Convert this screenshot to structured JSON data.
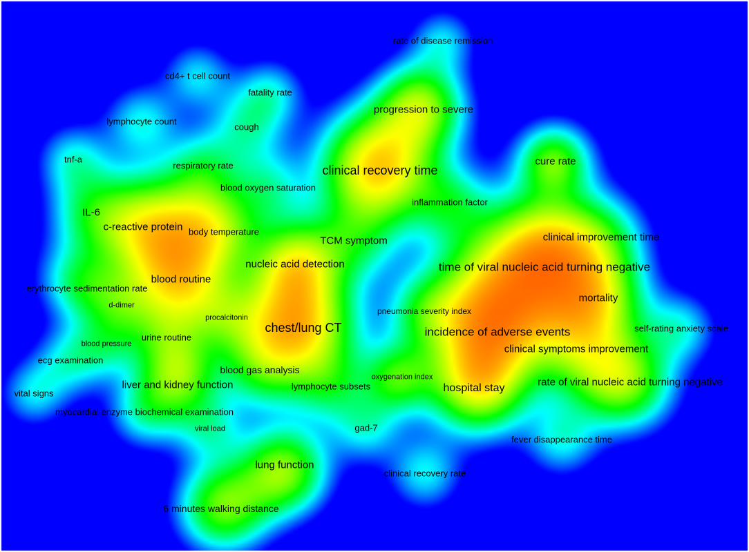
{
  "map": {
    "title": "",
    "colors": {
      "background": "#0000ff",
      "low": "#00ffff",
      "mid": "#00ff00",
      "high": "#ffff00",
      "peak": "#ff0000"
    }
  },
  "terms": [
    {
      "key": "rate-of-disease-remission",
      "label": "rate of disease remission",
      "density": 0.15
    },
    {
      "key": "cd4-t-cell-count",
      "label": "cd4+ t cell count",
      "density": 0.2
    },
    {
      "key": "fatality-rate",
      "label": "fatality rate",
      "density": 0.2
    },
    {
      "key": "progression-to-severe",
      "label": "progression to severe",
      "density": 0.6
    },
    {
      "key": "lymphocyte-count",
      "label": "lymphocyte count",
      "density": 0.3
    },
    {
      "key": "cough",
      "label": "cough",
      "density": 0.35
    },
    {
      "key": "tnf-a",
      "label": "tnf-a",
      "density": 0.25
    },
    {
      "key": "respiratory-rate",
      "label": "respiratory rate",
      "density": 0.3
    },
    {
      "key": "clinical-recovery-time",
      "label": "clinical recovery time",
      "density": 0.95
    },
    {
      "key": "cure-rate",
      "label": "cure rate",
      "density": 0.5
    },
    {
      "key": "blood-oxygen-saturation",
      "label": "blood oxygen saturation",
      "density": 0.35
    },
    {
      "key": "inflammation-factor",
      "label": "inflammation factor",
      "density": 0.3
    },
    {
      "key": "il-6",
      "label": "IL-6",
      "density": 0.5
    },
    {
      "key": "c-reactive-protein",
      "label": "c-reactive protein",
      "density": 0.65
    },
    {
      "key": "body-temperature",
      "label": "body temperature",
      "density": 0.5
    },
    {
      "key": "clinical-improvement-time",
      "label": "clinical improvement time",
      "density": 0.6
    },
    {
      "key": "tcm-symptom",
      "label": "TCM symptom",
      "density": 0.55
    },
    {
      "key": "nucleic-acid-detection",
      "label": "nucleic acid detection",
      "density": 0.6
    },
    {
      "key": "time-of-viral-nucleic-acid-turning-negative",
      "label": "time of viral nucleic acid turning negative",
      "density": 1.0
    },
    {
      "key": "blood-routine",
      "label": "blood routine",
      "density": 0.7
    },
    {
      "key": "erythrocyte-sedimentation-rate",
      "label": "erythrocyte sedimentation rate",
      "density": 0.3
    },
    {
      "key": "mortality",
      "label": "mortality",
      "density": 0.65
    },
    {
      "key": "d-dimer",
      "label": "d-dimer",
      "density": 0.2
    },
    {
      "key": "pneumonia-severity-index",
      "label": "pneumonia severity index",
      "density": 0.3
    },
    {
      "key": "procalcitonin",
      "label": "procalcitonin",
      "density": 0.3
    },
    {
      "key": "chest-lung-ct",
      "label": "chest/lung CT",
      "density": 1.0
    },
    {
      "key": "incidence-of-adverse-events",
      "label": "incidence of adverse events",
      "density": 0.85
    },
    {
      "key": "self-rating-anxiety-scale",
      "label": "self-rating anxiety scale",
      "density": 0.25
    },
    {
      "key": "urine-routine",
      "label": "urine routine",
      "density": 0.35
    },
    {
      "key": "blood-pressure",
      "label": "blood pressure",
      "density": 0.2
    },
    {
      "key": "clinical-symptoms-improvement",
      "label": "clinical symptoms improvement",
      "density": 0.75
    },
    {
      "key": "ecg-examination",
      "label": "ecg examination",
      "density": 0.25
    },
    {
      "key": "blood-gas-analysis",
      "label": "blood gas analysis",
      "density": 0.45
    },
    {
      "key": "oxygenation-index",
      "label": "oxygenation index",
      "density": 0.4
    },
    {
      "key": "liver-and-kidney-function",
      "label": "liver and kidney function",
      "density": 0.55
    },
    {
      "key": "lymphocyte-subsets",
      "label": "lymphocyte subsets",
      "density": 0.35
    },
    {
      "key": "hospital-stay",
      "label": "hospital stay",
      "density": 0.7
    },
    {
      "key": "rate-of-viral-nucleic-acid-turning-negative",
      "label": "rate of viral nucleic acid turning negative",
      "density": 0.7
    },
    {
      "key": "vital-signs",
      "label": "vital signs",
      "density": 0.2
    },
    {
      "key": "myocardial-enzyme-biochemical-examination",
      "label": "myocardial enzyme biochemical examination",
      "density": 0.3
    },
    {
      "key": "viral-load",
      "label": "viral load",
      "density": 0.2
    },
    {
      "key": "gad-7",
      "label": "gad-7",
      "density": 0.25
    },
    {
      "key": "fever-disappearance-time",
      "label": "fever disappearance time",
      "density": 0.3
    },
    {
      "key": "lung-function",
      "label": "lung function",
      "density": 0.6
    },
    {
      "key": "clinical-recovery-rate",
      "label": "clinical recovery rate",
      "density": 0.3
    },
    {
      "key": "6-minutes-walking-distance",
      "label": "6 minutes walking distance",
      "density": 0.55
    }
  ]
}
